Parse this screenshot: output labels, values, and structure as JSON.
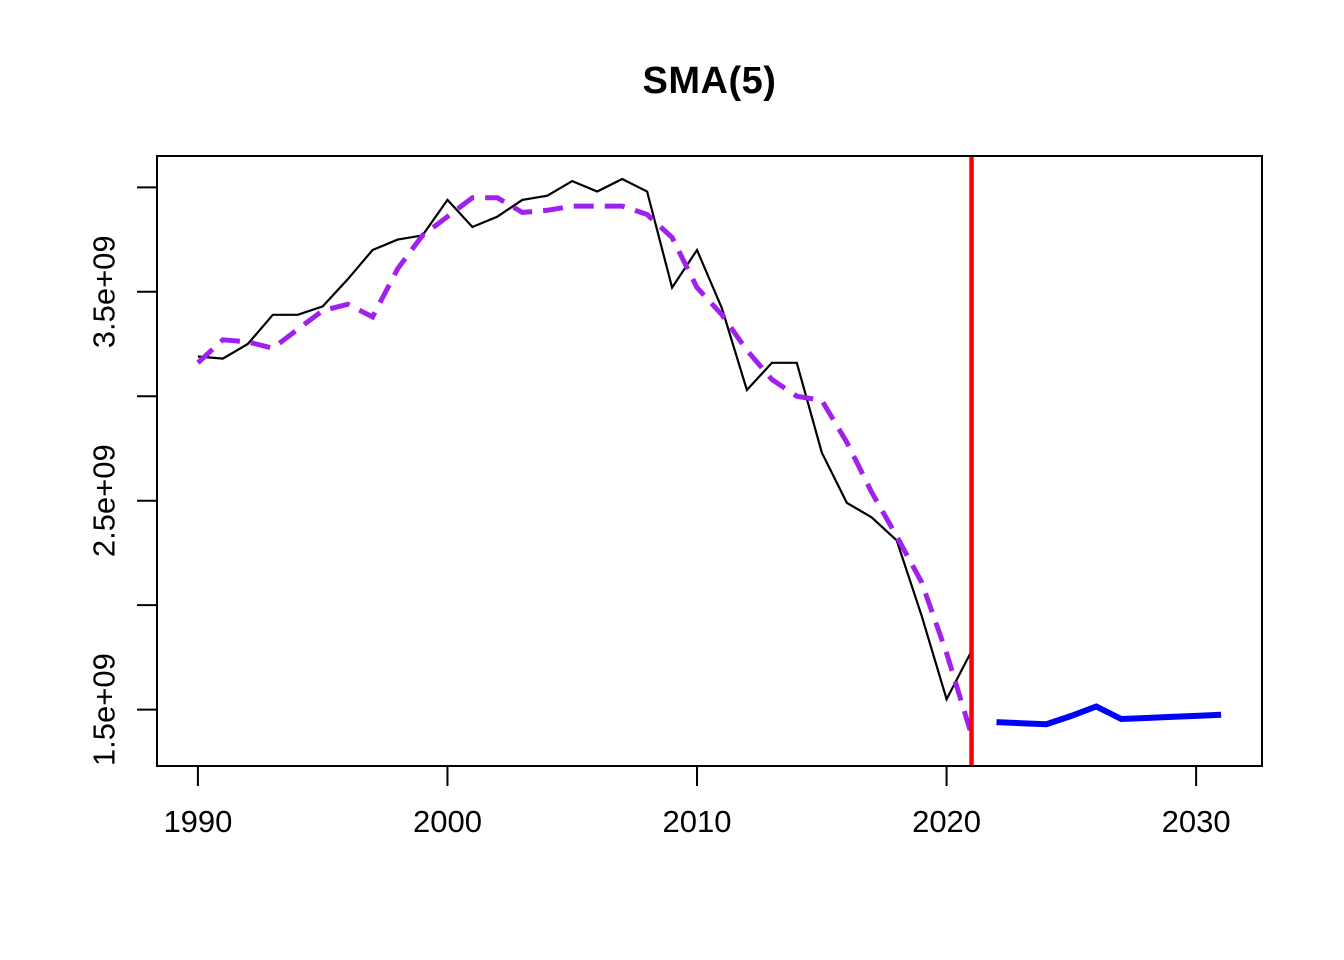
{
  "page": {
    "background": "#FFFFFF"
  },
  "chart_data": {
    "type": "line",
    "title": "SMA(5)",
    "xlabel": "",
    "ylabel": "",
    "grid": false,
    "legend": "none",
    "axis_color": "#000000",
    "tick_label_color": "#000000",
    "x_axis": {
      "range": [
        1988.36,
        2032.64
      ],
      "ticks": [
        {
          "value": 1990,
          "label": "1990"
        },
        {
          "value": 2000,
          "label": "2000"
        },
        {
          "value": 2010,
          "label": "2010"
        },
        {
          "value": 2020,
          "label": "2020"
        },
        {
          "value": 2030,
          "label": "2030"
        }
      ]
    },
    "y_axis": {
      "range": [
        1230000000.0,
        4150000000.0
      ],
      "ticks": [
        {
          "value": 1500000000.0,
          "label": "1.5e+09"
        },
        {
          "value": 2000000000.0,
          "label": ""
        },
        {
          "value": 2500000000.0,
          "label": "2.5e+09"
        },
        {
          "value": 3000000000.0,
          "label": ""
        },
        {
          "value": 3500000000.0,
          "label": "3.5e+09"
        },
        {
          "value": 4000000000.0,
          "label": ""
        }
      ]
    },
    "vline": {
      "x": 2021,
      "color": "#FF0000",
      "width": 4.5
    },
    "series": [
      {
        "name": "observed",
        "color": "#000000",
        "style": "solid",
        "width": 2.2,
        "x": [
          1990,
          1991,
          1992,
          1993,
          1994,
          1995,
          1996,
          1997,
          1998,
          1999,
          2000,
          2001,
          2002,
          2003,
          2004,
          2005,
          2006,
          2007,
          2008,
          2009,
          2010,
          2011,
          2012,
          2013,
          2014,
          2015,
          2016,
          2017,
          2018,
          2019,
          2020,
          2021
        ],
        "values": [
          3190000000.0,
          3180000000.0,
          3250000000.0,
          3390000000.0,
          3390000000.0,
          3430000000.0,
          3560000000.0,
          3700000000.0,
          3750000000.0,
          3770000000.0,
          3940000000.0,
          3810000000.0,
          3860000000.0,
          3940000000.0,
          3960000000.0,
          4030000000.0,
          3980000000.0,
          4040000000.0,
          3980000000.0,
          3520000000.0,
          3700000000.0,
          3420000000.0,
          3030000000.0,
          3160000000.0,
          3160000000.0,
          2730000000.0,
          2490000000.0,
          2420000000.0,
          2310000000.0,
          1950000000.0,
          1550000000.0,
          1780000000.0
        ]
      },
      {
        "name": "sma5",
        "color": "#A020F0",
        "style": "dashed",
        "width": 5,
        "x": [
          1990,
          1991,
          1992,
          1993,
          1994,
          1995,
          1996,
          1997,
          1998,
          1999,
          2000,
          2001,
          2002,
          2003,
          2004,
          2005,
          2006,
          2007,
          2008,
          2009,
          2010,
          2011,
          2012,
          2013,
          2014,
          2015,
          2016,
          2017,
          2018,
          2019,
          2020,
          2021
        ],
        "values": [
          3160000000.0,
          3270000000.0,
          3260000000.0,
          3230000000.0,
          3320000000.0,
          3410000000.0,
          3440000000.0,
          3380000000.0,
          3610000000.0,
          3770000000.0,
          3860000000.0,
          3950000000.0,
          3950000000.0,
          3880000000.0,
          3890000000.0,
          3910000000.0,
          3910000000.0,
          3910000000.0,
          3870000000.0,
          3760000000.0,
          3520000000.0,
          3390000000.0,
          3220000000.0,
          3080000000.0,
          3000000000.0,
          2980000000.0,
          2780000000.0,
          2540000000.0,
          2330000000.0,
          2110000000.0,
          1770000000.0,
          1380000000.0
        ]
      },
      {
        "name": "forecast",
        "color": "#0000FF",
        "style": "solid",
        "width": 6,
        "x": [
          2022,
          2023,
          2024,
          2025,
          2026,
          2027,
          2028,
          2029,
          2030,
          2031
        ],
        "values": [
          1440000000.0,
          1435000000.0,
          1430000000.0,
          1470000000.0,
          1515000000.0,
          1455000000.0,
          1460000000.0,
          1465000000.0,
          1470000000.0,
          1475000000.0
        ]
      }
    ]
  }
}
